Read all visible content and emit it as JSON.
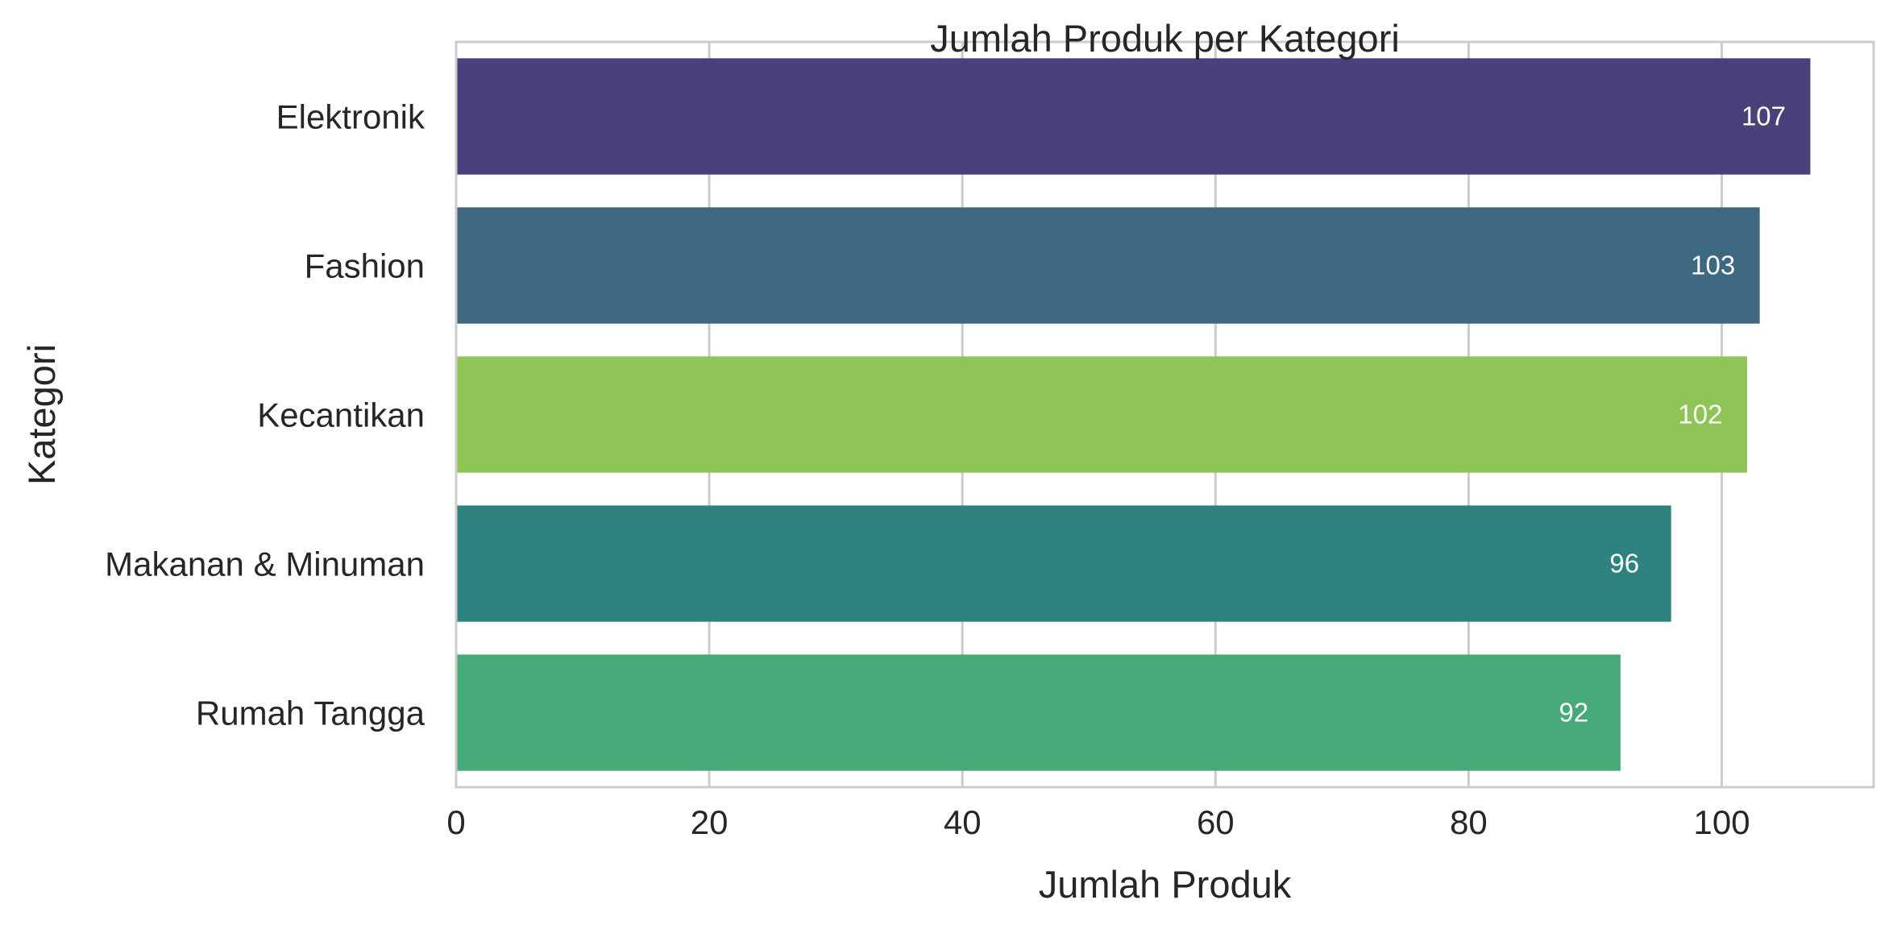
{
  "chart_data": {
    "type": "bar",
    "orientation": "horizontal",
    "title": "Jumlah Produk per Kategori",
    "xlabel": "Jumlah Produk",
    "ylabel": "Kategori",
    "categories": [
      "Elektronik",
      "Fashion",
      "Kecantikan",
      "Makanan & Minuman",
      "Rumah Tangga"
    ],
    "values": [
      107,
      103,
      102,
      96,
      92
    ],
    "value_labels": [
      "107",
      "103",
      "102",
      "96",
      "92"
    ],
    "bar_colors": [
      "#4b4079",
      "#3e6782",
      "#8fc556",
      "#2e837e",
      "#47a878"
    ],
    "xlim": [
      0,
      112
    ],
    "xticks": [
      0,
      20,
      40,
      60,
      80,
      100
    ],
    "xtick_labels": [
      "0",
      "20",
      "40",
      "60",
      "80",
      "100"
    ],
    "grid": true,
    "colors": {
      "grid": "#cccccc",
      "frame": "#cccccc",
      "text": "#262626",
      "value_label": "#ffffff"
    }
  }
}
